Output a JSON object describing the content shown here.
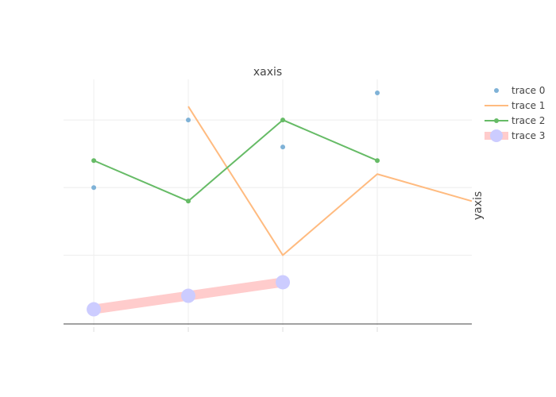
{
  "chart_data": {
    "type": "line",
    "xlabel": "xaxis",
    "ylabel": "yaxis",
    "xaxis_side": "top",
    "yaxis_side": "right",
    "xlim": [
      0.68,
      5.0
    ],
    "ylim": [
      -0.02,
      1.8
    ],
    "tick_labels_shown": false,
    "grid": true,
    "legend_position": "top-right",
    "series": [
      {
        "name": "trace 0",
        "mode": "markers",
        "color": "#7fb2d7",
        "x": [
          1,
          2,
          3,
          4
        ],
        "y": [
          1.0,
          1.5,
          1.3,
          1.7
        ]
      },
      {
        "name": "trace 1",
        "mode": "lines",
        "color": "#ffbb80",
        "x": [
          2,
          3,
          4,
          5
        ],
        "y": [
          1.6,
          0.5,
          1.1,
          0.9
        ]
      },
      {
        "name": "trace 2",
        "mode": "lines+markers",
        "color": "#66bb66",
        "x": [
          1,
          2,
          3,
          4
        ],
        "y": [
          1.2,
          0.9,
          1.5,
          1.2
        ]
      },
      {
        "name": "trace 3",
        "mode": "lines+markers",
        "color": "#ffcccc",
        "marker_color": "#ccccff",
        "x": [
          1,
          2,
          3
        ],
        "y": [
          0.1,
          0.2,
          0.3
        ]
      }
    ]
  }
}
